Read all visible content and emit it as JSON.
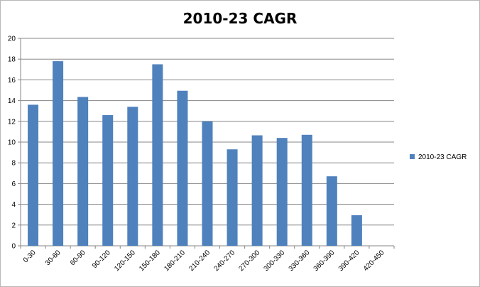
{
  "chart_data": {
    "type": "bar",
    "title": "2010-23 CAGR",
    "xlabel": "",
    "ylabel": "",
    "categories": [
      "0-30",
      "30-60",
      "60-90",
      "90-120",
      "120-150",
      "150-180",
      "180-210",
      "210-240",
      "240-270",
      "270-300",
      "300-330",
      "330-360",
      "360-390",
      "390-420",
      "420-450"
    ],
    "series": [
      {
        "name": "2010-23 CAGR",
        "color": "#4f81bd",
        "values": [
          13.6,
          17.8,
          14.35,
          12.6,
          13.4,
          17.5,
          14.95,
          12.0,
          9.3,
          10.65,
          10.4,
          10.7,
          6.7,
          2.95,
          0
        ]
      }
    ],
    "ylim": [
      0,
      20
    ],
    "yticks": [
      "0",
      "2",
      "4",
      "6",
      "8",
      "10",
      "12",
      "14",
      "16",
      "18",
      "20"
    ],
    "grid": true,
    "legend_position": "right"
  }
}
